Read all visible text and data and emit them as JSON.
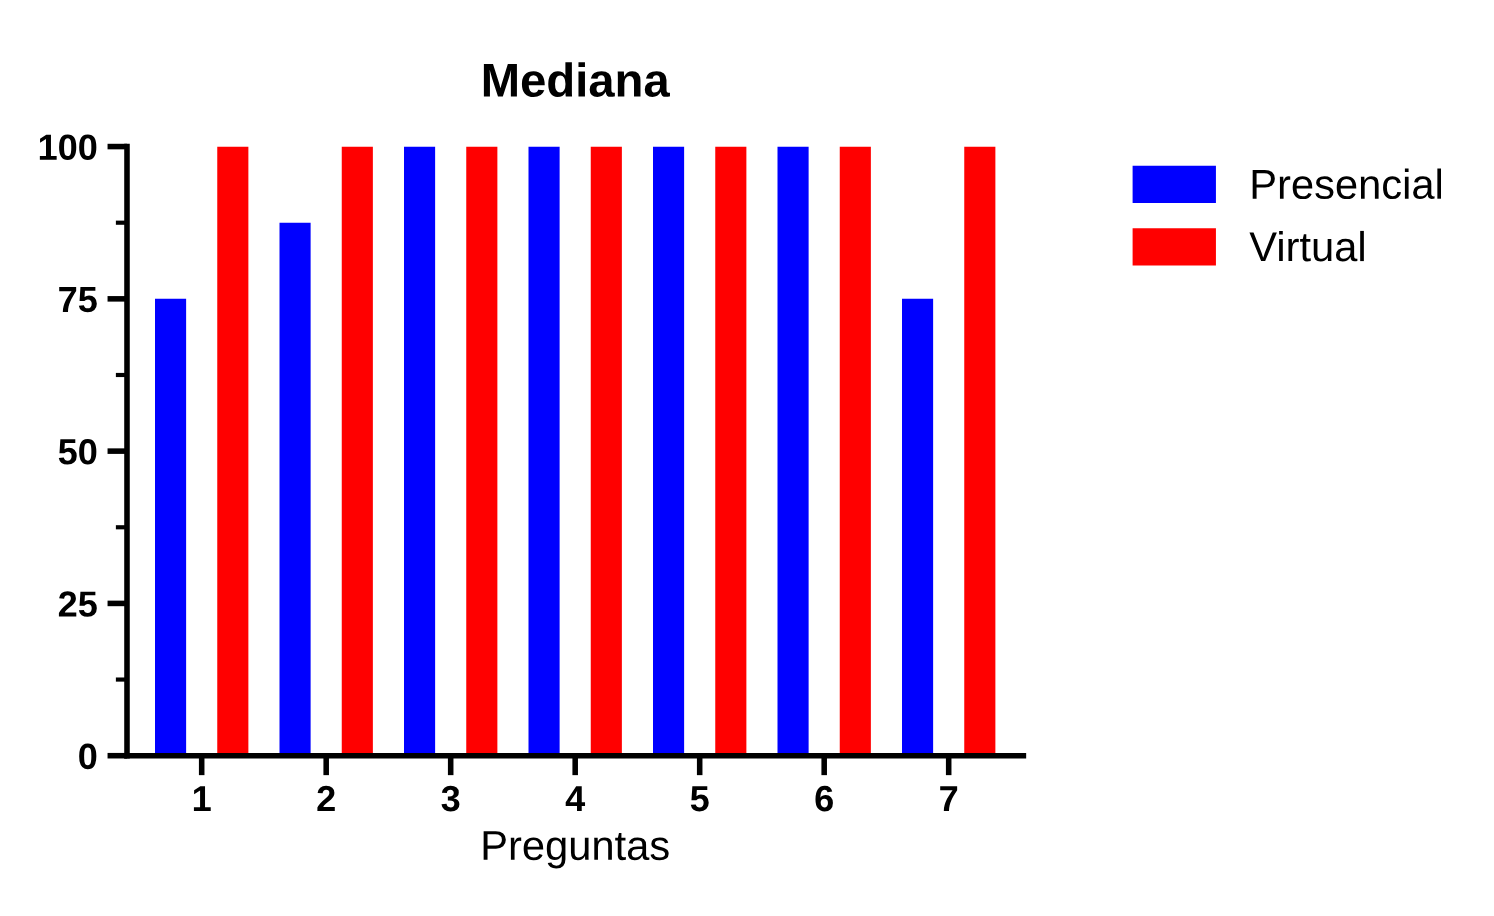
{
  "chart_data": {
    "type": "bar",
    "title": "Mediana",
    "xlabel": "Preguntas",
    "categories": [
      "1",
      "2",
      "3",
      "4",
      "5",
      "6",
      "7"
    ],
    "series": [
      {
        "name": "Presencial",
        "color": "#0000ff",
        "values": [
          75,
          87.5,
          100,
          100,
          100,
          100,
          75
        ]
      },
      {
        "name": "Virtual",
        "color": "#ff0000",
        "values": [
          100,
          100,
          100,
          100,
          100,
          100,
          100
        ]
      }
    ],
    "ylim": [
      0,
      100
    ],
    "yticks": [
      0,
      25,
      50,
      75,
      100
    ],
    "legend": "right",
    "grid": false
  }
}
